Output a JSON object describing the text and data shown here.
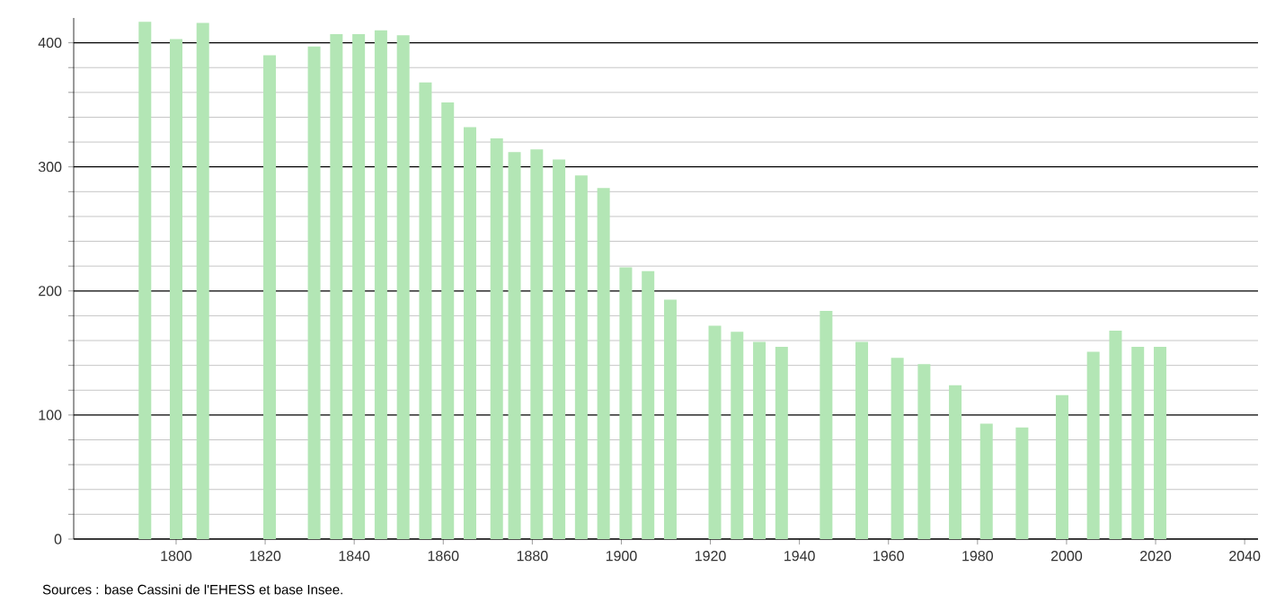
{
  "chart_data": {
    "type": "bar",
    "x": [
      1793,
      1800,
      1806,
      1821,
      1831,
      1836,
      1841,
      1846,
      1851,
      1856,
      1861,
      1866,
      1872,
      1876,
      1881,
      1886,
      1891,
      1896,
      1901,
      1906,
      1911,
      1921,
      1926,
      1931,
      1936,
      1946,
      1954,
      1962,
      1968,
      1975,
      1982,
      1990,
      1999,
      2006,
      2011,
      2016,
      2021
    ],
    "values": [
      417,
      403,
      416,
      390,
      397,
      407,
      407,
      410,
      406,
      368,
      352,
      332,
      323,
      312,
      314,
      306,
      293,
      283,
      219,
      216,
      193,
      172,
      167,
      159,
      155,
      184,
      159,
      146,
      141,
      124,
      93,
      90,
      116,
      151,
      168,
      155,
      155
    ],
    "color": "#b3e6b5",
    "xlim": [
      1777,
      2043
    ],
    "ylim": [
      0,
      420
    ],
    "xticks": [
      1800,
      1820,
      1840,
      1860,
      1880,
      1900,
      1920,
      1940,
      1960,
      1980,
      2000,
      2020,
      2040
    ],
    "yticks": [
      0,
      100,
      200,
      300,
      400
    ],
    "grid": "y",
    "annotations": [
      "Sources : base Cassini de l'EHESS et base Insee."
    ]
  }
}
